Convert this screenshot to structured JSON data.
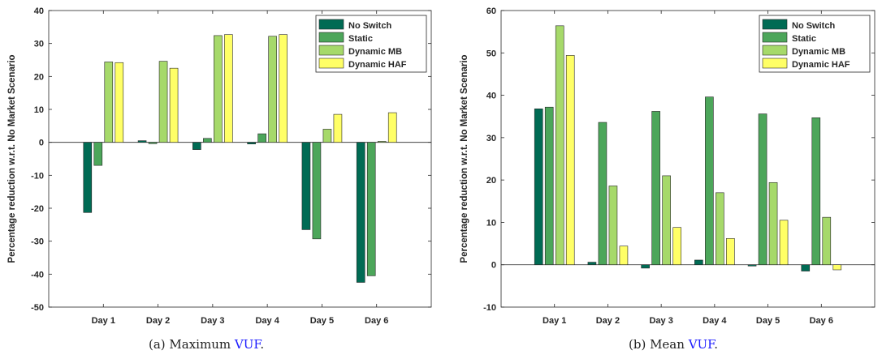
{
  "colors": {
    "no_switch": "#006B54",
    "static": "#4CA65A",
    "dynamic_mb": "#A6D96A",
    "dynamic_haf": "#FFFF66"
  },
  "captions": [
    {
      "prefix": "(a) Maximum ",
      "ref": "VUF",
      "suffix": "."
    },
    {
      "prefix": "(b) Mean ",
      "ref": "VUF",
      "suffix": "."
    }
  ],
  "chart_data": [
    {
      "type": "bar",
      "ylabel": "Percentage reduction w.r.t. No Market Scenario",
      "ylim": [
        -50,
        40
      ],
      "yticks": [
        -50,
        -40,
        -30,
        -20,
        -10,
        0,
        10,
        20,
        30,
        40
      ],
      "categories": [
        "Day 1",
        "Day 2",
        "Day 3",
        "Day 4",
        "Day 5",
        "Day 6"
      ],
      "legend_position": "top-right",
      "grid": false,
      "series": [
        {
          "name": "No Switch",
          "color_key": "no_switch",
          "values": [
            -21.3,
            0.5,
            -2.2,
            -0.5,
            -26.5,
            -42.5
          ]
        },
        {
          "name": "Static",
          "color_key": "static",
          "values": [
            -7.0,
            -0.4,
            1.2,
            2.6,
            -29.3,
            -40.5
          ]
        },
        {
          "name": "Dynamic MB",
          "color_key": "dynamic_mb",
          "values": [
            24.4,
            24.6,
            32.4,
            32.2,
            4.0,
            0.3
          ]
        },
        {
          "name": "Dynamic HAF",
          "color_key": "dynamic_haf",
          "values": [
            24.2,
            22.5,
            32.7,
            32.7,
            8.5,
            9.0
          ]
        }
      ]
    },
    {
      "type": "bar",
      "ylabel": "Percentage reduction w.r.t. No Market Scenario",
      "ylim": [
        -10,
        60
      ],
      "yticks": [
        -10,
        0,
        10,
        20,
        30,
        40,
        50,
        60
      ],
      "categories": [
        "Day 1",
        "Day 2",
        "Day 3",
        "Day 4",
        "Day 5",
        "Day 6"
      ],
      "legend_position": "top-right",
      "grid": false,
      "series": [
        {
          "name": "No Switch",
          "color_key": "no_switch",
          "values": [
            36.8,
            0.6,
            -0.8,
            1.1,
            -0.3,
            -1.5
          ]
        },
        {
          "name": "Static",
          "color_key": "static",
          "values": [
            37.2,
            33.6,
            36.2,
            39.6,
            35.6,
            34.7
          ]
        },
        {
          "name": "Dynamic MB",
          "color_key": "dynamic_mb",
          "values": [
            56.4,
            18.6,
            21.0,
            17.0,
            19.4,
            11.2
          ]
        },
        {
          "name": "Dynamic HAF",
          "color_key": "dynamic_haf",
          "values": [
            49.4,
            4.4,
            8.8,
            6.2,
            10.5,
            -1.2
          ]
        }
      ]
    }
  ]
}
